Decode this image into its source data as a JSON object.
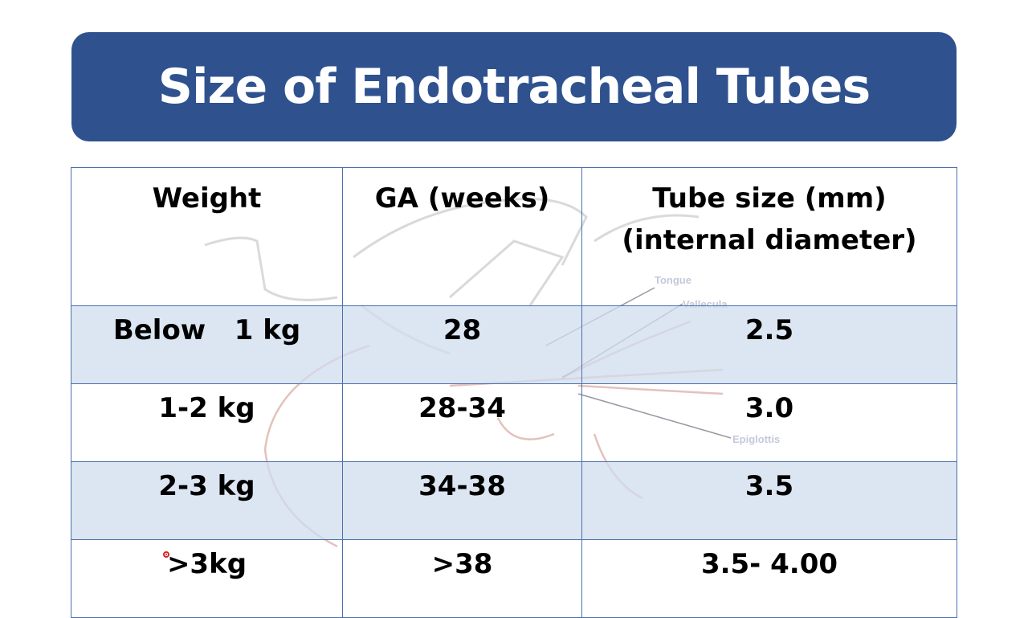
{
  "title": "Size of Endotracheal Tubes",
  "table": {
    "headers": [
      "Weight",
      "GA (weeks)",
      "Tube size (mm)\n(internal diameter)"
    ],
    "header_line1": "Tube size (mm)",
    "header_line2": "(internal diameter)",
    "rows": [
      [
        "Below   1 kg",
        "28",
        "2.5"
      ],
      [
        "1-2 kg",
        "28-34",
        "3.0"
      ],
      [
        "2-3 kg",
        "34-38",
        "3.5"
      ],
      [
        ">3kg",
        ">38",
        "3.5- 4.00"
      ]
    ]
  },
  "background_labels": [
    "Tongue",
    "Vallecula",
    "Epiglottis"
  ],
  "colors": {
    "title_bg": "#2F528F",
    "row_shade": "#D9E2F0",
    "border": "#4A6FAE",
    "cursor": "#E02020"
  }
}
